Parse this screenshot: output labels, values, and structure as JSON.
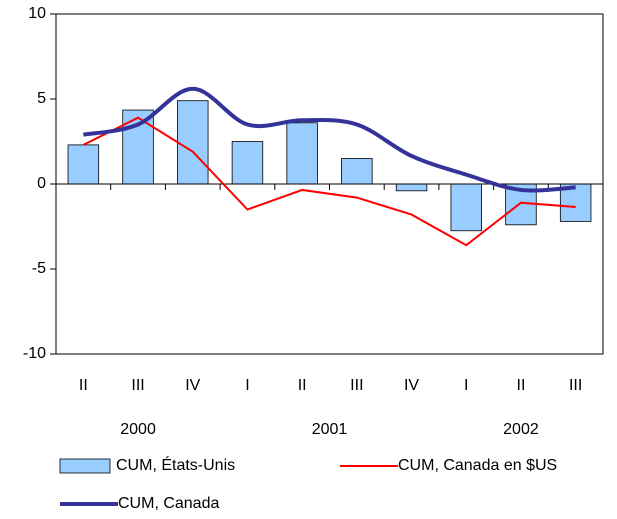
{
  "chart_data": {
    "type": "bar-line",
    "categories": [
      "II",
      "III",
      "IV",
      "I",
      "II",
      "III",
      "IV",
      "I",
      "II",
      "III"
    ],
    "years": [
      "2000",
      "2001",
      "2002"
    ],
    "series": [
      {
        "name": "CUM, États-Unis",
        "type": "bar",
        "color": "#99ccff",
        "values": [
          2.3,
          4.35,
          4.9,
          2.5,
          3.6,
          1.5,
          -0.4,
          -2.75,
          -2.4,
          -2.2
        ]
      },
      {
        "name": "CUM, Canada en $US",
        "type": "line",
        "color": "#ff0000",
        "values": [
          2.3,
          3.9,
          1.9,
          -1.5,
          -0.35,
          -0.8,
          -1.8,
          -3.6,
          -1.1,
          -1.35
        ]
      },
      {
        "name": "CUM, Canada",
        "type": "line",
        "smooth": true,
        "color": "#333399",
        "values": [
          2.9,
          3.5,
          5.6,
          3.5,
          3.75,
          3.5,
          1.65,
          0.55,
          -0.35,
          -0.2
        ]
      }
    ],
    "ylim": [
      -10,
      10
    ],
    "yticks": [
      10,
      5,
      0,
      -5,
      -10
    ]
  }
}
